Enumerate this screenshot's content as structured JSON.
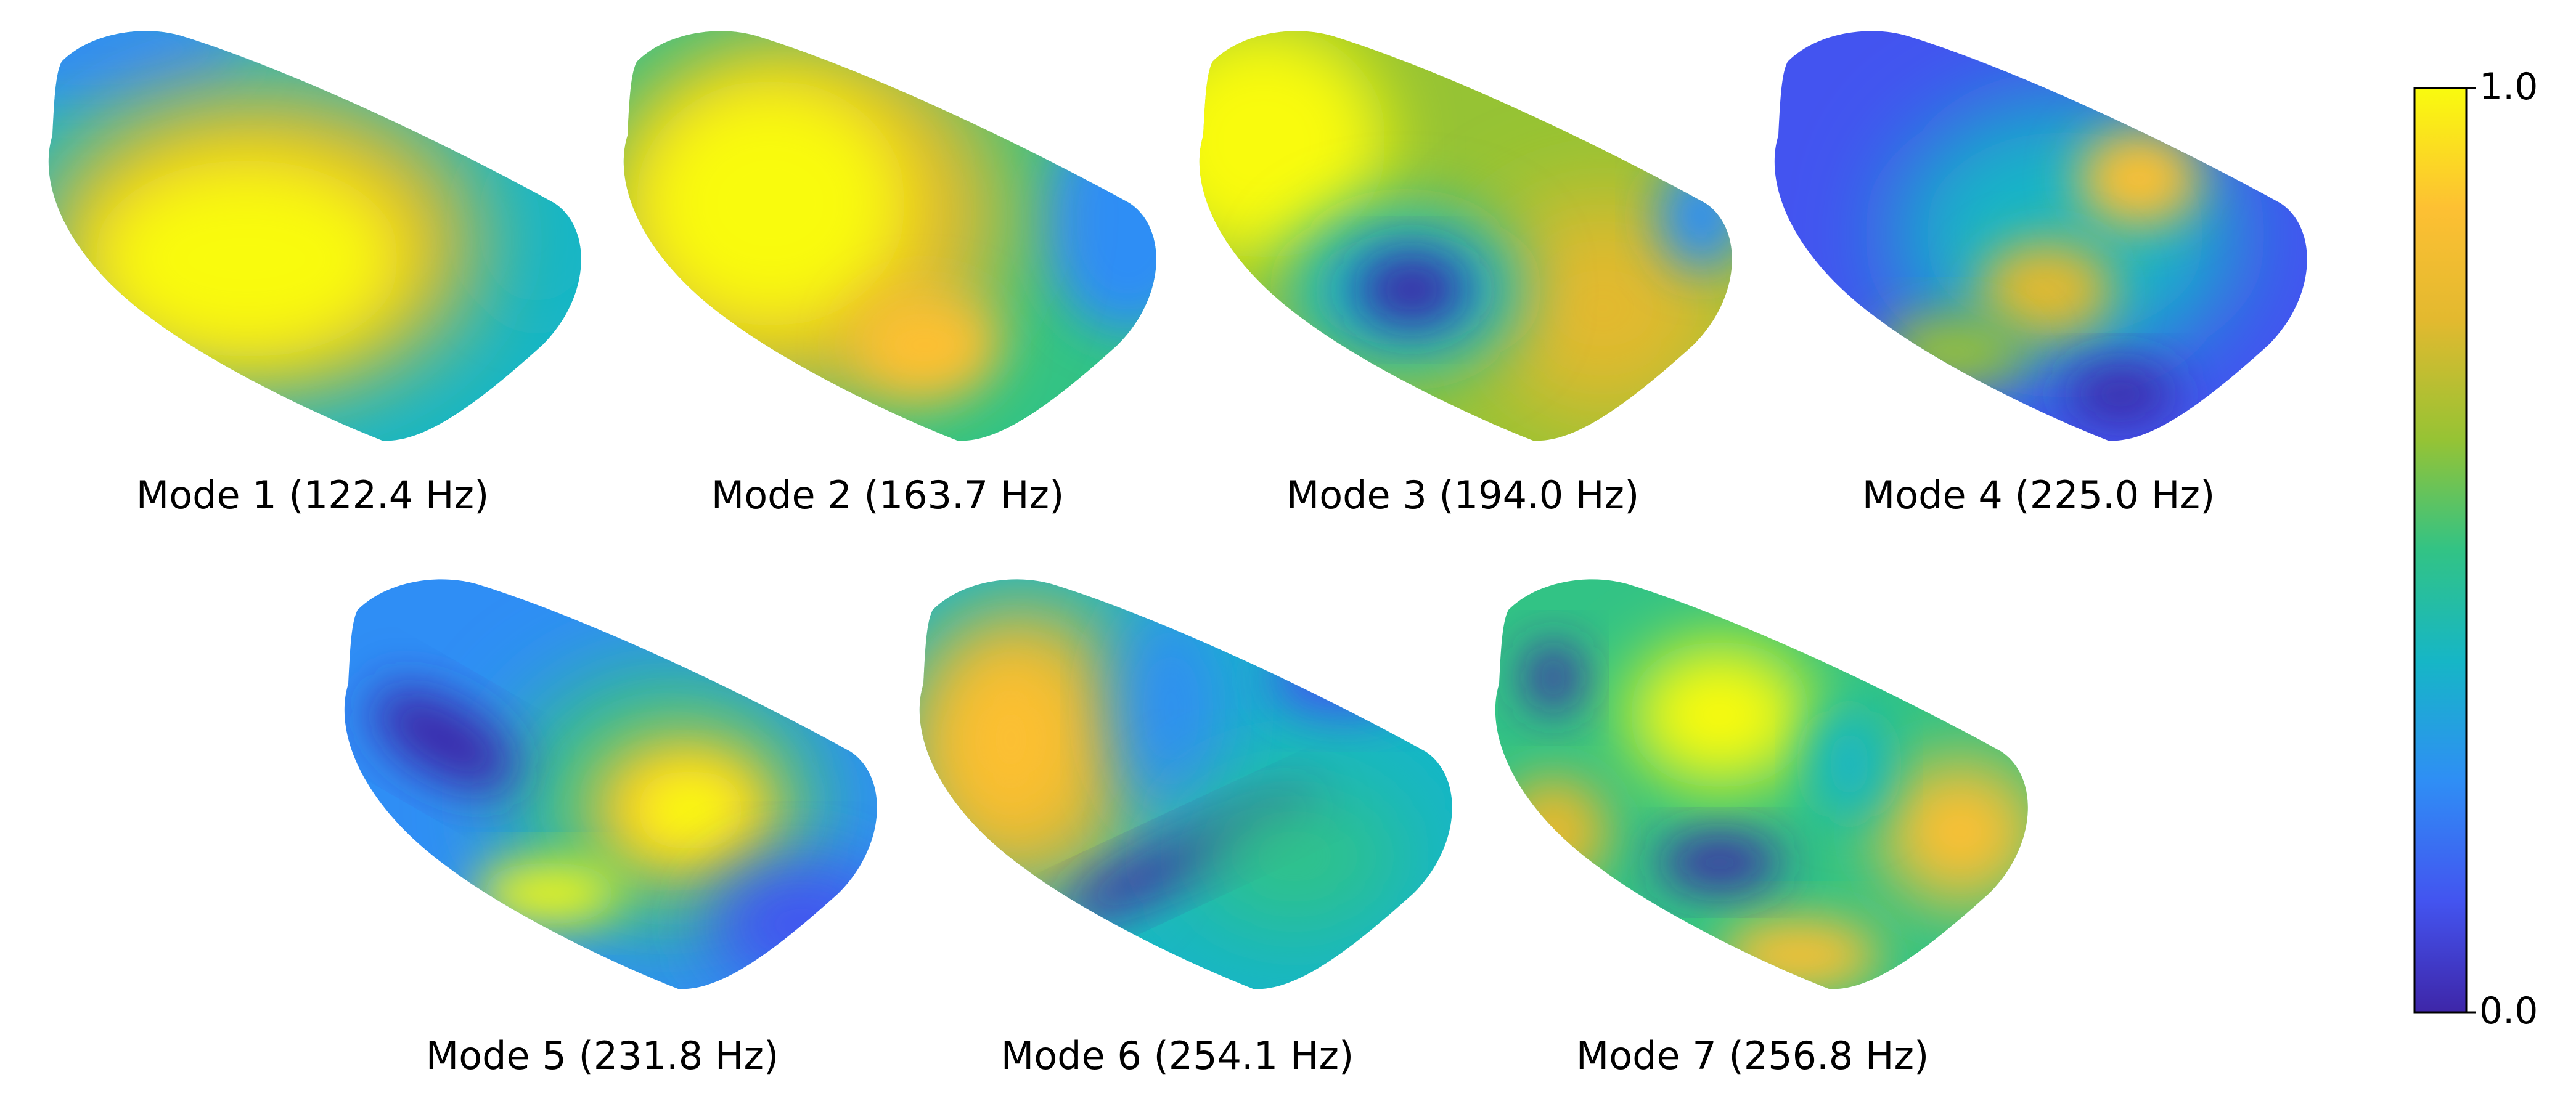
{
  "colormap": [
    "#3e26a8",
    "#4354f0",
    "#2f8ef5",
    "#16b6c6",
    "#32c385",
    "#96c334",
    "#e3b92f",
    "#fdc033",
    "#f9fb0e"
  ],
  "colorbar": {
    "max_label": "1.0",
    "min_label": "0.0"
  },
  "modes": [
    {
      "label": "Mode 1 (122.4 Hz)",
      "number": 1,
      "frequency_hz": 122.4
    },
    {
      "label": "Mode 2 (163.7 Hz)",
      "number": 2,
      "frequency_hz": 163.7
    },
    {
      "label": "Mode 3 (194.0 Hz)",
      "number": 3,
      "frequency_hz": 194.0
    },
    {
      "label": "Mode 4 (225.0 Hz)",
      "number": 4,
      "frequency_hz": 225.0
    },
    {
      "label": "Mode 5 (231.8 Hz)",
      "number": 5,
      "frequency_hz": 231.8
    },
    {
      "label": "Mode 6 (254.1 Hz)",
      "number": 6,
      "frequency_hz": 254.1
    },
    {
      "label": "Mode 7 (256.8 Hz)",
      "number": 7,
      "frequency_hz": 256.8
    }
  ]
}
